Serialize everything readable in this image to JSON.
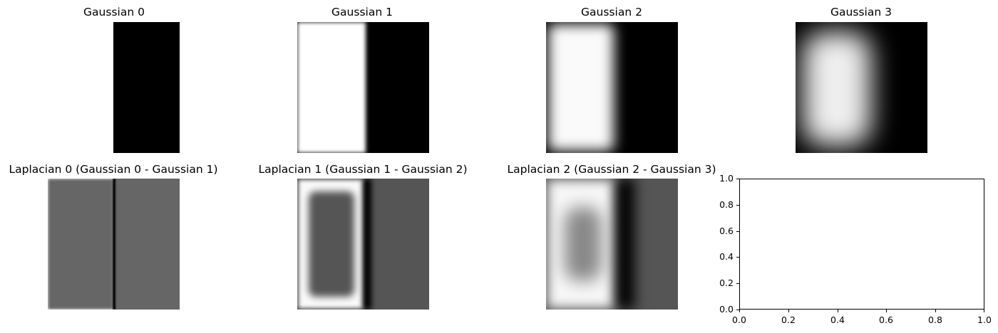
{
  "chart_data": [
    {
      "type": "image",
      "title": "Gaussian 0"
    },
    {
      "type": "image",
      "title": "Gaussian 1"
    },
    {
      "type": "image",
      "title": "Gaussian 2"
    },
    {
      "type": "image",
      "title": "Gaussian 3"
    },
    {
      "type": "image",
      "title": "Laplacian 0 (Gaussian 0 - Gaussian 1)"
    },
    {
      "type": "image",
      "title": "Laplacian 1 (Gaussian 1 - Gaussian 2)"
    },
    {
      "type": "image",
      "title": "Laplacian 2 (Gaussian 2 - Gaussian 3)"
    },
    {
      "type": "line",
      "title": "",
      "xlim": [
        0.0,
        1.0
      ],
      "ylim": [
        0.0,
        1.0
      ],
      "xticks": [
        "0.0",
        "0.2",
        "0.4",
        "0.6",
        "0.8",
        "1.0"
      ],
      "yticks": [
        "0.0",
        "0.2",
        "0.4",
        "0.6",
        "0.8",
        "1.0"
      ],
      "series": [],
      "grid": false
    }
  ]
}
